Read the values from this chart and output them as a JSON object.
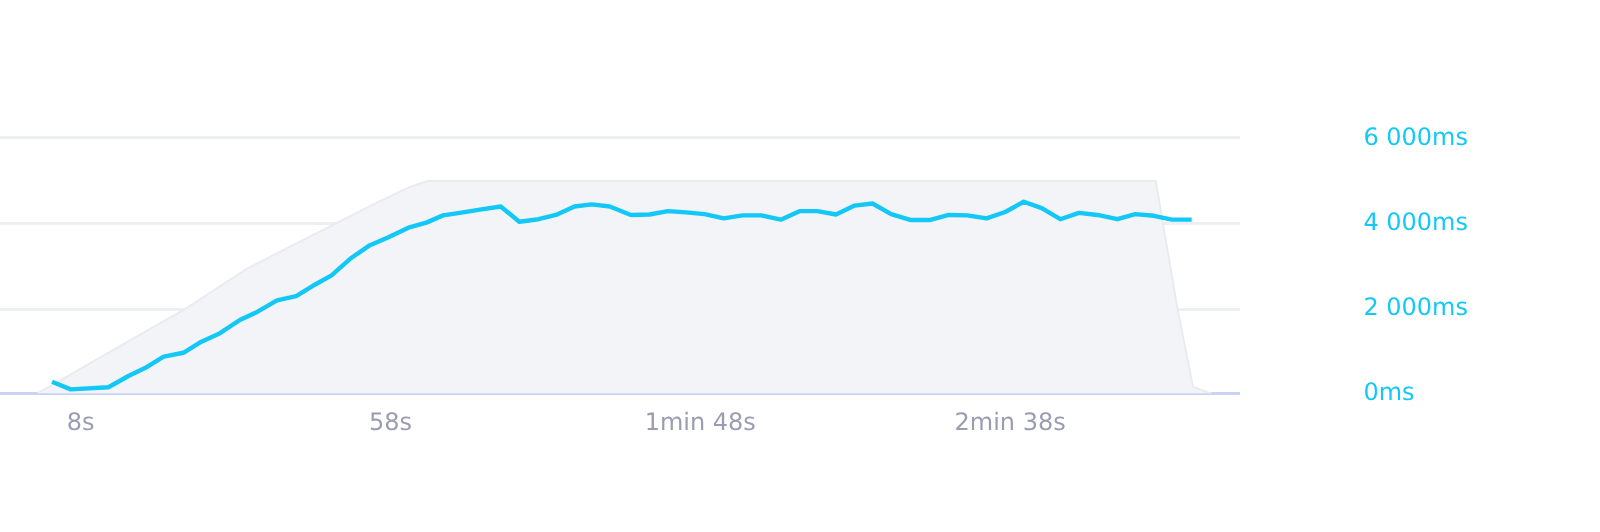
{
  "chart_data": {
    "type": "line",
    "xlim": [
      -5,
      195
    ],
    "xticks": [
      {
        "value": 8,
        "label": "8s"
      },
      {
        "value": 58,
        "label": "58s"
      },
      {
        "value": 108,
        "label": "1min 48s"
      },
      {
        "value": 158,
        "label": "2min 38s"
      }
    ],
    "y2lim": [
      0,
      6000
    ],
    "y2ticks": [
      {
        "value": 0,
        "label": "0ms"
      },
      {
        "value": 2000,
        "label": "2 000ms"
      },
      {
        "value": 4000,
        "label": "4 000ms"
      },
      {
        "value": 6000,
        "label": "6 000ms"
      }
    ],
    "grid": "y",
    "series": [
      {
        "type": "area",
        "color": "#f3f4f7",
        "axis": "y2",
        "x": [
          1,
          15,
          25,
          35,
          48.5,
          56,
          61,
          64,
          181.5,
          185,
          187.5,
          190.5
        ],
        "values": [
          0,
          1170,
          2000,
          2950,
          3950,
          4500,
          4850,
          5000,
          5000,
          2000,
          160,
          0
        ]
      },
      {
        "type": "line",
        "color": "#13c8f7",
        "axis": "y2",
        "x": [
          3.4,
          6.4,
          12.5,
          15.8,
          18.4,
          21.4,
          24.6,
          27.5,
          30.5,
          33.7,
          36.5,
          39.7,
          42.8,
          45.8,
          48.5,
          51.5,
          54.7,
          57.6,
          60.9,
          63.8,
          66.5,
          69.2,
          72.7,
          75.8,
          78.8,
          81.9,
          84.7,
          87.7,
          90.5,
          93.4,
          96.8,
          99.8,
          102.8,
          105.7,
          108.7,
          111.8,
          114.8,
          117.8,
          121,
          124,
          126.9,
          129.9,
          132.9,
          135.8,
          138.8,
          142,
          145,
          148.1,
          151.1,
          154.2,
          157.2,
          160.2,
          163.1,
          166.1,
          169.1,
          172.1,
          175.3,
          178.2,
          181.2,
          184.1,
          187.3
        ],
        "values": [
          280,
          100,
          150,
          420,
          600,
          870,
          960,
          1220,
          1420,
          1730,
          1920,
          2190,
          2290,
          2560,
          2780,
          3170,
          3490,
          3670,
          3900,
          4020,
          4190,
          4250,
          4330,
          4400,
          4040,
          4100,
          4200,
          4400,
          4450,
          4400,
          4200,
          4210,
          4290,
          4260,
          4220,
          4120,
          4190,
          4190,
          4090,
          4290,
          4290,
          4210,
          4420,
          4470,
          4220,
          4080,
          4080,
          4200,
          4190,
          4120,
          4270,
          4510,
          4360,
          4100,
          4250,
          4200,
          4100,
          4220,
          4180,
          4090,
          4090
        ]
      }
    ]
  }
}
